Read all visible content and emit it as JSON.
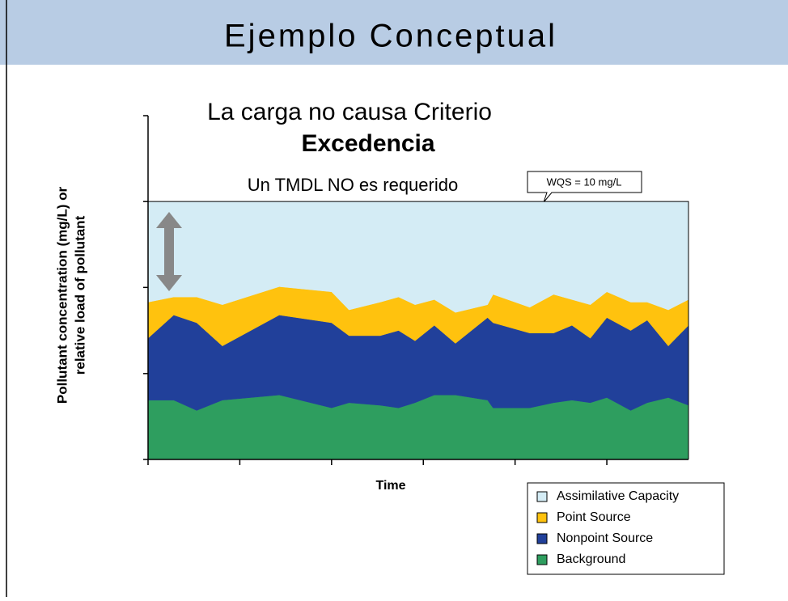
{
  "slide_title": "Ejemplo Conceptual",
  "chart_data": {
    "type": "stacked_area",
    "title": "La carga no causa Criterio",
    "title_line2": "Excedencia",
    "subtitle": "Un TMDL NO es requerido",
    "annotation": "WQS = 10 mg/L",
    "xlabel": "Time",
    "ylabel": [
      "Pollutant concentration (mg/L) or",
      "relative load of pollutant"
    ],
    "x": [
      0,
      0.28,
      0.53,
      0.81,
      1.43,
      2.0,
      2.19,
      2.53,
      2.73,
      2.91,
      3.12,
      3.35,
      3.7,
      3.76,
      4.16,
      4.42,
      4.62,
      4.82,
      5.0,
      5.26,
      5.44,
      5.67,
      5.89
    ],
    "xlim": [
      0,
      5.89
    ],
    "xticks": [
      0,
      1,
      2,
      3,
      4,
      5
    ],
    "ylim": [
      0,
      13.33
    ],
    "yticks": [
      0,
      3.33,
      6.67,
      10,
      13.33
    ],
    "series": [
      {
        "name": "Background",
        "color": "#2e9e5f",
        "values": [
          2.3,
          2.3,
          1.9,
          2.3,
          2.5,
          2.0,
          2.2,
          2.1,
          2.0,
          2.2,
          2.5,
          2.5,
          2.3,
          2.0,
          2.0,
          2.2,
          2.3,
          2.2,
          2.4,
          1.9,
          2.2,
          2.4,
          2.1
        ]
      },
      {
        "name": "Nonpoint Source",
        "color": "#21409a",
        "values": [
          2.4,
          3.3,
          3.4,
          2.1,
          3.1,
          3.3,
          2.6,
          2.7,
          3.0,
          2.4,
          2.7,
          2.0,
          3.2,
          3.3,
          2.9,
          2.7,
          2.9,
          2.5,
          3.1,
          3.1,
          3.2,
          2.0,
          3.1
        ]
      },
      {
        "name": "Point Source",
        "color": "#ffc20e",
        "values": [
          1.4,
          0.7,
          1.0,
          1.6,
          1.1,
          1.2,
          1.0,
          1.3,
          1.3,
          1.4,
          1.0,
          1.2,
          0.5,
          1.1,
          1.0,
          1.5,
          1.0,
          1.3,
          1.0,
          1.1,
          0.7,
          1.4,
          1.0
        ]
      },
      {
        "name": "Assimilative Capacity",
        "color": "#d4ecf5",
        "values": [
          3.9,
          3.7,
          3.7,
          4.0,
          3.3,
          3.5,
          4.2,
          3.9,
          3.7,
          4.0,
          3.8,
          4.3,
          4.0,
          3.6,
          4.1,
          3.6,
          3.8,
          4.0,
          3.5,
          3.9,
          3.9,
          4.2,
          3.8
        ]
      }
    ]
  }
}
